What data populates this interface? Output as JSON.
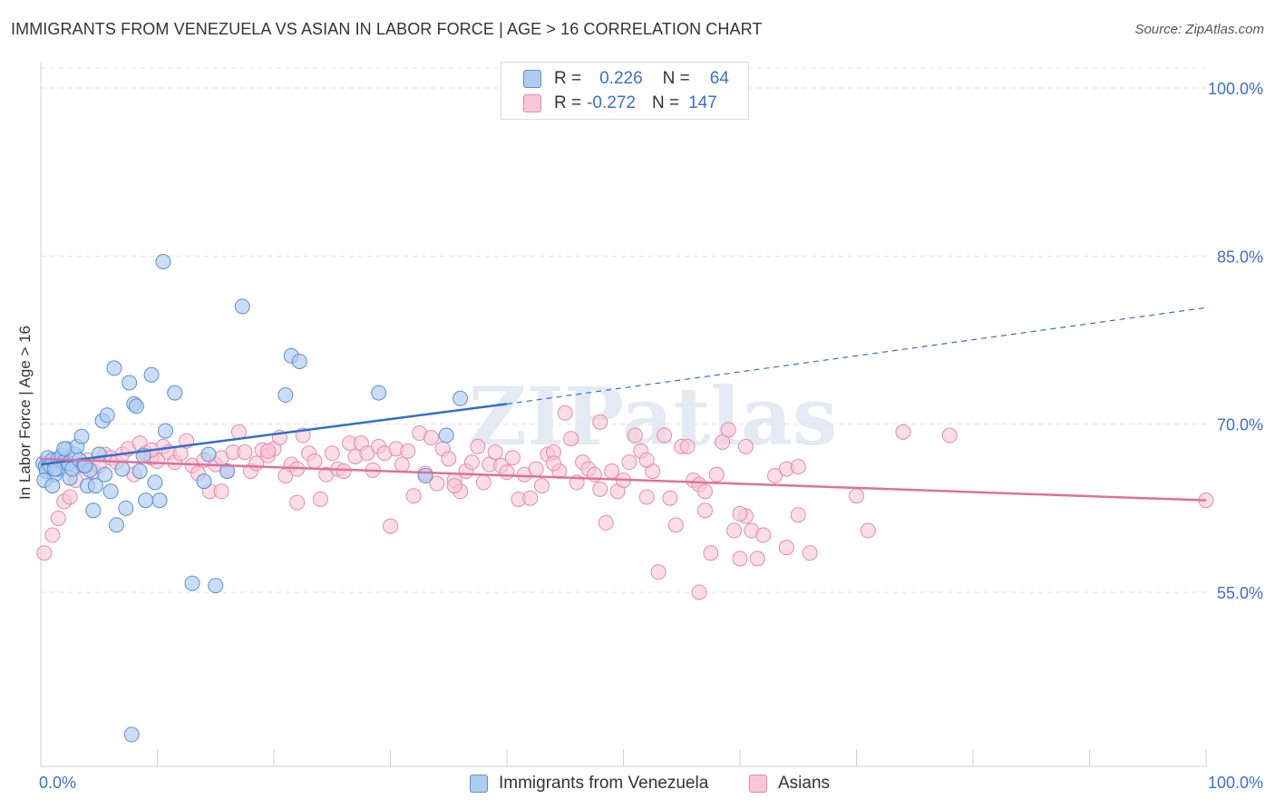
{
  "header": {
    "title": "IMMIGRANTS FROM VENEZUELA VS ASIAN IN LABOR FORCE | AGE > 16 CORRELATION CHART",
    "source": "Source: ZipAtlas.com"
  },
  "legend_top": {
    "rows": [
      {
        "r_label": "R =",
        "r_value": "0.226",
        "n_label": "N =",
        "n_value": "64"
      },
      {
        "r_label": "R =",
        "r_value": "-0.272",
        "n_label": "N =",
        "n_value": "147"
      }
    ]
  },
  "legend_bottom": {
    "items": [
      "Immigrants from Venezuela",
      "Asians"
    ]
  },
  "colors": {
    "blue_fill": "#aecbf0",
    "blue_stroke": "#5b8fd6",
    "blue_line": "#2f6fcf",
    "pink_fill": "#f8c6d6",
    "pink_stroke": "#e78aa8",
    "pink_line": "#e0709a",
    "axis_label": "#3a6fd0",
    "grid": "#e0e0e0"
  },
  "chart_data": {
    "type": "scatter",
    "title": "IMMIGRANTS FROM VENEZUELA VS ASIAN IN LABOR FORCE | AGE > 16 CORRELATION CHART",
    "xlabel": "",
    "ylabel": "In Labor Force | Age > 16",
    "xlim": [
      0,
      100
    ],
    "ylim": [
      40,
      103
    ],
    "x_tick_labels": [
      "0.0%",
      "100.0%"
    ],
    "y_ticks": [
      55,
      70,
      85,
      100
    ],
    "y_tick_labels": [
      "55.0%",
      "70.0%",
      "85.0%",
      "100.0%"
    ],
    "grid": true,
    "watermark": "ZIPatlas",
    "series": [
      {
        "name": "Immigrants from Venezuela",
        "r": 0.226,
        "n": 64,
        "trend": {
          "x0": 0,
          "y0": 66.4,
          "x1": 40,
          "y1": 71.8,
          "dashed_to_x": 100,
          "dashed_to_y": 80.4
        },
        "points": [
          [
            0.2,
            66.5
          ],
          [
            0.4,
            66.2
          ],
          [
            0.5,
            65.8
          ],
          [
            0.6,
            67.0
          ],
          [
            0.8,
            66.3
          ],
          [
            1.0,
            66.8
          ],
          [
            1.2,
            65.5
          ],
          [
            1.4,
            66.0
          ],
          [
            1.5,
            66.9
          ],
          [
            1.8,
            67.2
          ],
          [
            2.0,
            66.6
          ],
          [
            2.2,
            67.8
          ],
          [
            2.4,
            66.5
          ],
          [
            2.5,
            65.2
          ],
          [
            2.7,
            66.0
          ],
          [
            2.9,
            67.3
          ],
          [
            3.1,
            68.0
          ],
          [
            3.3,
            66.8
          ],
          [
            3.5,
            68.9
          ],
          [
            3.7,
            66.3
          ],
          [
            4.0,
            64.5
          ],
          [
            4.2,
            65.9
          ],
          [
            4.5,
            62.3
          ],
          [
            4.7,
            64.5
          ],
          [
            5.0,
            67.3
          ],
          [
            5.3,
            70.3
          ],
          [
            5.5,
            65.5
          ],
          [
            5.7,
            70.8
          ],
          [
            6.0,
            64.0
          ],
          [
            6.3,
            75.0
          ],
          [
            6.5,
            61.0
          ],
          [
            7.0,
            66.0
          ],
          [
            7.3,
            62.5
          ],
          [
            7.6,
            73.7
          ],
          [
            8.0,
            71.8
          ],
          [
            8.2,
            71.6
          ],
          [
            8.5,
            65.8
          ],
          [
            8.8,
            67.2
          ],
          [
            9.0,
            63.2
          ],
          [
            9.5,
            74.4
          ],
          [
            9.8,
            64.8
          ],
          [
            10.2,
            63.2
          ],
          [
            10.5,
            84.5
          ],
          [
            10.7,
            69.4
          ],
          [
            11.5,
            72.8
          ],
          [
            13.0,
            55.8
          ],
          [
            14.0,
            64.9
          ],
          [
            14.4,
            67.3
          ],
          [
            15.0,
            55.6
          ],
          [
            16.0,
            65.8
          ],
          [
            17.3,
            80.5
          ],
          [
            21.0,
            72.6
          ],
          [
            21.5,
            76.1
          ],
          [
            22.2,
            75.6
          ],
          [
            29.0,
            72.8
          ],
          [
            33.0,
            65.4
          ],
          [
            34.8,
            69.0
          ],
          [
            36.0,
            72.3
          ],
          [
            0.3,
            65.0
          ],
          [
            1.0,
            64.5
          ],
          [
            7.8,
            42.3
          ],
          [
            2.0,
            67.8
          ],
          [
            1.2,
            66.0
          ],
          [
            3.8,
            66.3
          ]
        ]
      },
      {
        "name": "Asians",
        "r": -0.272,
        "n": 147,
        "trend": {
          "x0": 0,
          "y0": 66.9,
          "x1": 100,
          "y1": 63.2
        },
        "points": [
          [
            0.3,
            58.5
          ],
          [
            1.0,
            60.1
          ],
          [
            1.5,
            61.6
          ],
          [
            2.0,
            63.1
          ],
          [
            2.5,
            63.5
          ],
          [
            3.0,
            65.0
          ],
          [
            3.5,
            66.3
          ],
          [
            4.0,
            66.8
          ],
          [
            4.5,
            65.8
          ],
          [
            5.0,
            66.3
          ],
          [
            5.5,
            67.3
          ],
          [
            6.0,
            67.0
          ],
          [
            6.5,
            66.6
          ],
          [
            7.0,
            67.3
          ],
          [
            7.5,
            67.8
          ],
          [
            8.0,
            65.5
          ],
          [
            8.5,
            68.3
          ],
          [
            9.0,
            67.4
          ],
          [
            9.5,
            67.0
          ],
          [
            10.0,
            66.7
          ],
          [
            10.5,
            68.0
          ],
          [
            11.0,
            67.5
          ],
          [
            11.5,
            66.6
          ],
          [
            12.0,
            67.4
          ],
          [
            12.5,
            68.5
          ],
          [
            13.0,
            66.3
          ],
          [
            13.5,
            65.6
          ],
          [
            14.0,
            66.8
          ],
          [
            14.5,
            64.0
          ],
          [
            15.0,
            66.4
          ],
          [
            15.5,
            67.0
          ],
          [
            16.0,
            65.8
          ],
          [
            16.5,
            67.5
          ],
          [
            17.0,
            69.3
          ],
          [
            17.5,
            67.5
          ],
          [
            18.0,
            65.8
          ],
          [
            18.5,
            66.5
          ],
          [
            19.0,
            67.7
          ],
          [
            19.5,
            67.2
          ],
          [
            20.0,
            67.8
          ],
          [
            20.5,
            68.8
          ],
          [
            21.0,
            65.4
          ],
          [
            21.5,
            66.4
          ],
          [
            22.0,
            63.0
          ],
          [
            22.5,
            69.0
          ],
          [
            23.0,
            67.4
          ],
          [
            23.5,
            66.7
          ],
          [
            24.0,
            63.3
          ],
          [
            24.5,
            65.5
          ],
          [
            25.0,
            67.4
          ],
          [
            25.5,
            66.0
          ],
          [
            26.0,
            65.8
          ],
          [
            26.5,
            68.3
          ],
          [
            27.0,
            67.1
          ],
          [
            27.5,
            68.3
          ],
          [
            28.0,
            67.4
          ],
          [
            28.5,
            65.9
          ],
          [
            29.0,
            68.0
          ],
          [
            29.5,
            67.4
          ],
          [
            30.0,
            60.9
          ],
          [
            30.5,
            67.8
          ],
          [
            31.0,
            66.4
          ],
          [
            31.5,
            67.6
          ],
          [
            32.0,
            63.6
          ],
          [
            32.5,
            69.2
          ],
          [
            33.0,
            65.6
          ],
          [
            33.5,
            68.8
          ],
          [
            34.0,
            64.7
          ],
          [
            34.5,
            67.8
          ],
          [
            35.0,
            66.9
          ],
          [
            35.5,
            65.0
          ],
          [
            36.0,
            64.0
          ],
          [
            36.5,
            65.8
          ],
          [
            37.0,
            66.6
          ],
          [
            37.5,
            68.0
          ],
          [
            38.0,
            64.8
          ],
          [
            38.5,
            66.4
          ],
          [
            39.0,
            67.5
          ],
          [
            39.5,
            66.3
          ],
          [
            40.0,
            65.7
          ],
          [
            40.5,
            67.0
          ],
          [
            41.0,
            63.3
          ],
          [
            41.5,
            65.5
          ],
          [
            42.0,
            63.4
          ],
          [
            42.5,
            66.0
          ],
          [
            43.0,
            64.5
          ],
          [
            43.5,
            67.3
          ],
          [
            44.0,
            67.5
          ],
          [
            44.5,
            65.8
          ],
          [
            45.0,
            71.0
          ],
          [
            45.5,
            68.7
          ],
          [
            46.0,
            64.8
          ],
          [
            46.5,
            66.6
          ],
          [
            47.0,
            66.0
          ],
          [
            47.5,
            65.5
          ],
          [
            48.0,
            70.2
          ],
          [
            48.5,
            61.2
          ],
          [
            49.0,
            65.8
          ],
          [
            49.5,
            64.0
          ],
          [
            50.0,
            65.0
          ],
          [
            50.5,
            66.6
          ],
          [
            51.0,
            69.0
          ],
          [
            51.5,
            67.6
          ],
          [
            52.0,
            63.5
          ],
          [
            52.5,
            65.8
          ],
          [
            53.0,
            56.8
          ],
          [
            53.5,
            69.0
          ],
          [
            54.0,
            63.4
          ],
          [
            54.5,
            61.0
          ],
          [
            55.0,
            68.0
          ],
          [
            55.5,
            68.0
          ],
          [
            56.0,
            65.0
          ],
          [
            56.5,
            64.6
          ],
          [
            57.0,
            62.3
          ],
          [
            57.5,
            58.5
          ],
          [
            58.0,
            65.5
          ],
          [
            58.5,
            68.4
          ],
          [
            59.0,
            69.5
          ],
          [
            59.5,
            60.5
          ],
          [
            60.0,
            58.0
          ],
          [
            60.5,
            61.8
          ],
          [
            61.0,
            60.5
          ],
          [
            61.5,
            58.0
          ],
          [
            62.0,
            60.1
          ],
          [
            63.0,
            65.4
          ],
          [
            64.0,
            59.0
          ],
          [
            65.0,
            61.9
          ],
          [
            66.0,
            58.5
          ],
          [
            70.0,
            63.6
          ],
          [
            71.0,
            60.5
          ],
          [
            74.0,
            69.3
          ],
          [
            78.0,
            69.0
          ],
          [
            56.5,
            55.0
          ],
          [
            35.5,
            64.5
          ],
          [
            15.5,
            64.0
          ],
          [
            22.0,
            66.0
          ],
          [
            44.0,
            66.5
          ],
          [
            48.0,
            64.2
          ],
          [
            52.0,
            66.8
          ],
          [
            57.0,
            64.0
          ],
          [
            60.0,
            62.0
          ],
          [
            64.0,
            66.0
          ],
          [
            60.5,
            68.0
          ],
          [
            65.0,
            66.2
          ],
          [
            9.5,
            67.7
          ],
          [
            19.5,
            67.6
          ],
          [
            100,
            63.2
          ]
        ]
      }
    ]
  }
}
